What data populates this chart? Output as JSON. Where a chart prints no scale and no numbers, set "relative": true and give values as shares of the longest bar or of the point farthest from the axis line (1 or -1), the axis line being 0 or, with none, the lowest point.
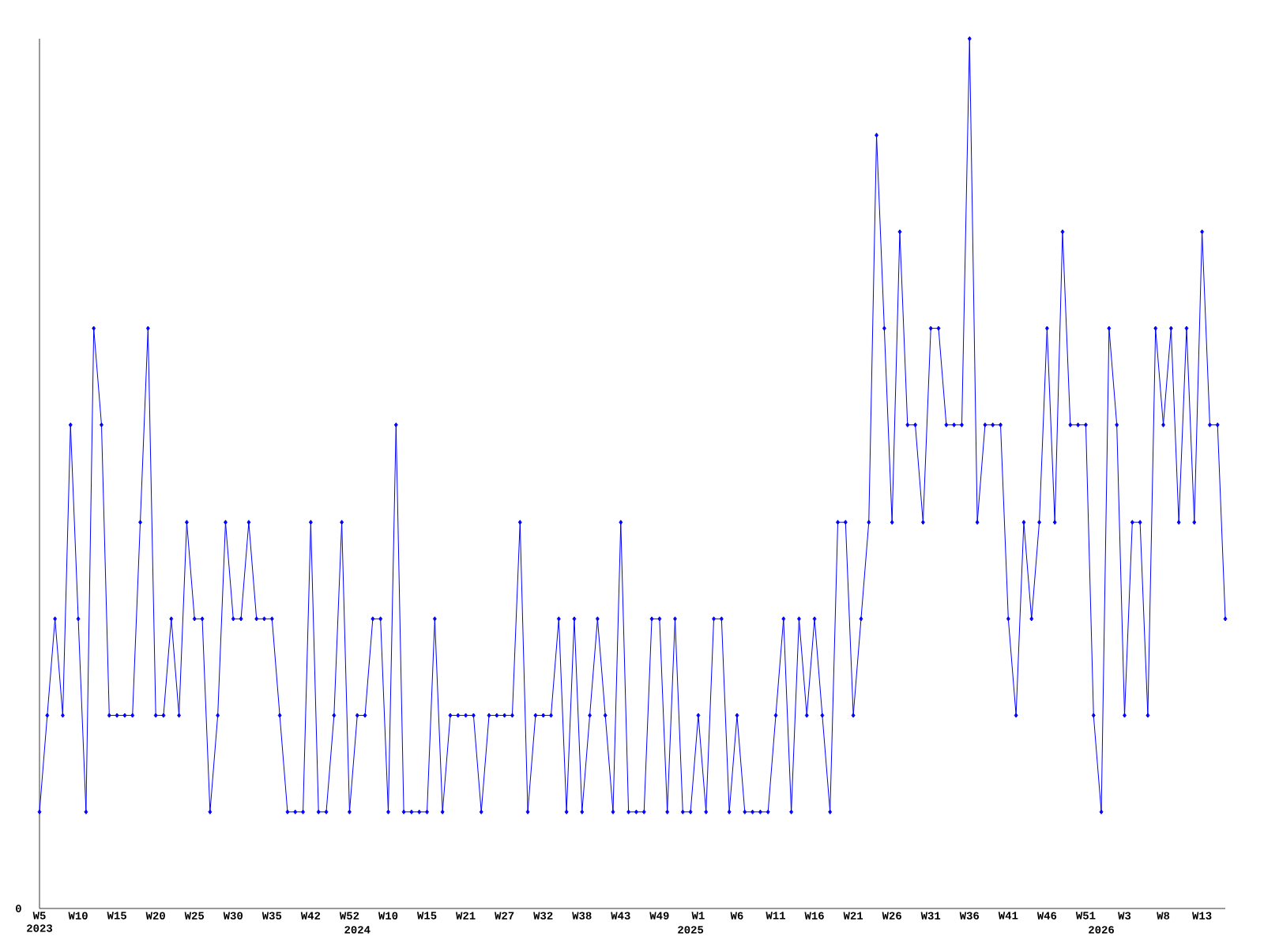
{
  "chart_data": {
    "type": "line",
    "relative": true,
    "color": "#0000ff",
    "marker": "diamond",
    "line_style": "solid",
    "annotations": [
      "0"
    ],
    "categories": [
      "W5 2023",
      null,
      null,
      null,
      null,
      "W10",
      null,
      null,
      null,
      null,
      "W15",
      null,
      null,
      null,
      null,
      "W20",
      null,
      null,
      null,
      null,
      "W25",
      null,
      null,
      null,
      null,
      "W30",
      null,
      null,
      null,
      null,
      "W35",
      null,
      null,
      null,
      null,
      "W42",
      null,
      null,
      null,
      null,
      "W52",
      "2024",
      null,
      null,
      null,
      "W10",
      null,
      null,
      null,
      null,
      "W15",
      null,
      null,
      null,
      null,
      "W21",
      null,
      null,
      null,
      null,
      "W27",
      null,
      null,
      null,
      null,
      "W32",
      null,
      null,
      null,
      null,
      "W38",
      null,
      null,
      null,
      null,
      "W43",
      null,
      null,
      null,
      null,
      "W49",
      null,
      null,
      null,
      "2025",
      "W1",
      null,
      null,
      null,
      null,
      "W6",
      null,
      null,
      null,
      null,
      "W11",
      null,
      null,
      null,
      null,
      "W16",
      null,
      null,
      null,
      null,
      "W21",
      null,
      null,
      null,
      null,
      "W26",
      null,
      null,
      null,
      null,
      "W31",
      null,
      null,
      null,
      null,
      "W36",
      null,
      null,
      null,
      null,
      "W41",
      null,
      null,
      null,
      null,
      "W46",
      null,
      null,
      null,
      null,
      "W51",
      null,
      "2026",
      null,
      null,
      "W3",
      null,
      null,
      null,
      null,
      "W8",
      null,
      null,
      null,
      null,
      "W13",
      null,
      null,
      null
    ],
    "values": [
      0.111,
      0.222,
      0.333,
      0.222,
      0.556,
      0.333,
      0.111,
      0.667,
      0.556,
      0.222,
      0.222,
      0.222,
      0.222,
      0.444,
      0.667,
      0.222,
      0.222,
      0.333,
      0.222,
      0.444,
      0.333,
      0.333,
      0.111,
      0.222,
      0.444,
      0.333,
      0.333,
      0.444,
      0.333,
      0.333,
      0.333,
      0.222,
      0.111,
      0.111,
      0.111,
      0.444,
      0.111,
      0.111,
      0.222,
      0.444,
      0.111,
      0.222,
      0.222,
      0.333,
      0.333,
      0.111,
      0.556,
      0.111,
      0.111,
      0.111,
      0.111,
      0.333,
      0.111,
      0.222,
      0.222,
      0.222,
      0.222,
      0.111,
      0.222,
      0.222,
      0.222,
      0.222,
      0.444,
      0.111,
      0.222,
      0.222,
      0.222,
      0.333,
      0.111,
      0.333,
      0.111,
      0.222,
      0.333,
      0.222,
      0.111,
      0.444,
      0.111,
      0.111,
      0.111,
      0.333,
      0.333,
      0.111,
      0.333,
      0.111,
      0.111,
      0.222,
      0.111,
      0.333,
      0.333,
      0.111,
      0.222,
      0.111,
      0.111,
      0.111,
      0.111,
      0.222,
      0.333,
      0.111,
      0.333,
      0.222,
      0.333,
      0.222,
      0.111,
      0.444,
      0.444,
      0.222,
      0.333,
      0.444,
      0.889,
      0.667,
      0.444,
      0.778,
      0.556,
      0.556,
      0.444,
      0.667,
      0.667,
      0.556,
      0.556,
      0.556,
      1,
      0.444,
      0.556,
      0.556,
      0.556,
      0.333,
      0.222,
      0.444,
      0.333,
      0.444,
      0.667,
      0.444,
      0.778,
      0.556,
      0.556,
      0.556,
      0.222,
      0.111,
      0.667,
      0.556,
      0.222,
      0.444,
      0.444,
      0.222,
      0.667,
      0.556,
      0.667,
      0.444,
      0.667,
      0.444,
      0.778,
      0.556,
      0.556,
      0.333
    ]
  }
}
